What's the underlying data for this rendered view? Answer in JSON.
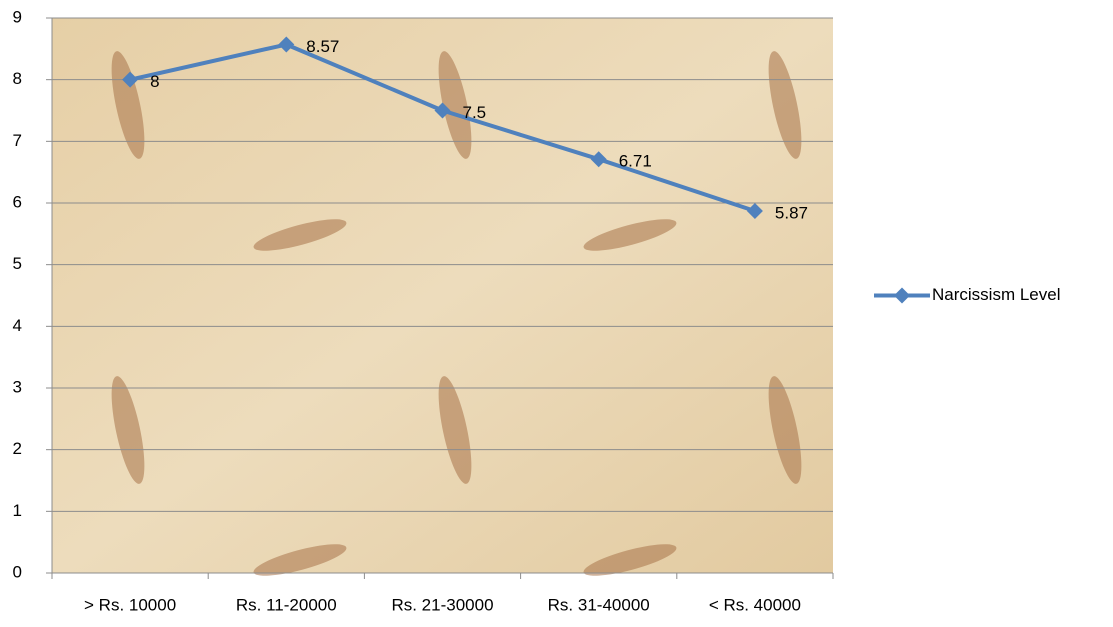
{
  "chart_data": {
    "type": "line",
    "categories": [
      "> Rs. 10000",
      "Rs. 11-20000",
      "Rs. 21-30000",
      "Rs. 31-40000",
      "< Rs. 40000"
    ],
    "series": [
      {
        "name": "Narcissism Level",
        "color": "#4f81bd",
        "values": [
          8,
          8.57,
          7.5,
          6.71,
          5.87
        ]
      }
    ],
    "ylim": [
      0,
      9
    ],
    "yticks": [
      0,
      1,
      2,
      3,
      4,
      5,
      6,
      7,
      8,
      9
    ],
    "grid": true,
    "legend": "right",
    "data_labels": true
  }
}
